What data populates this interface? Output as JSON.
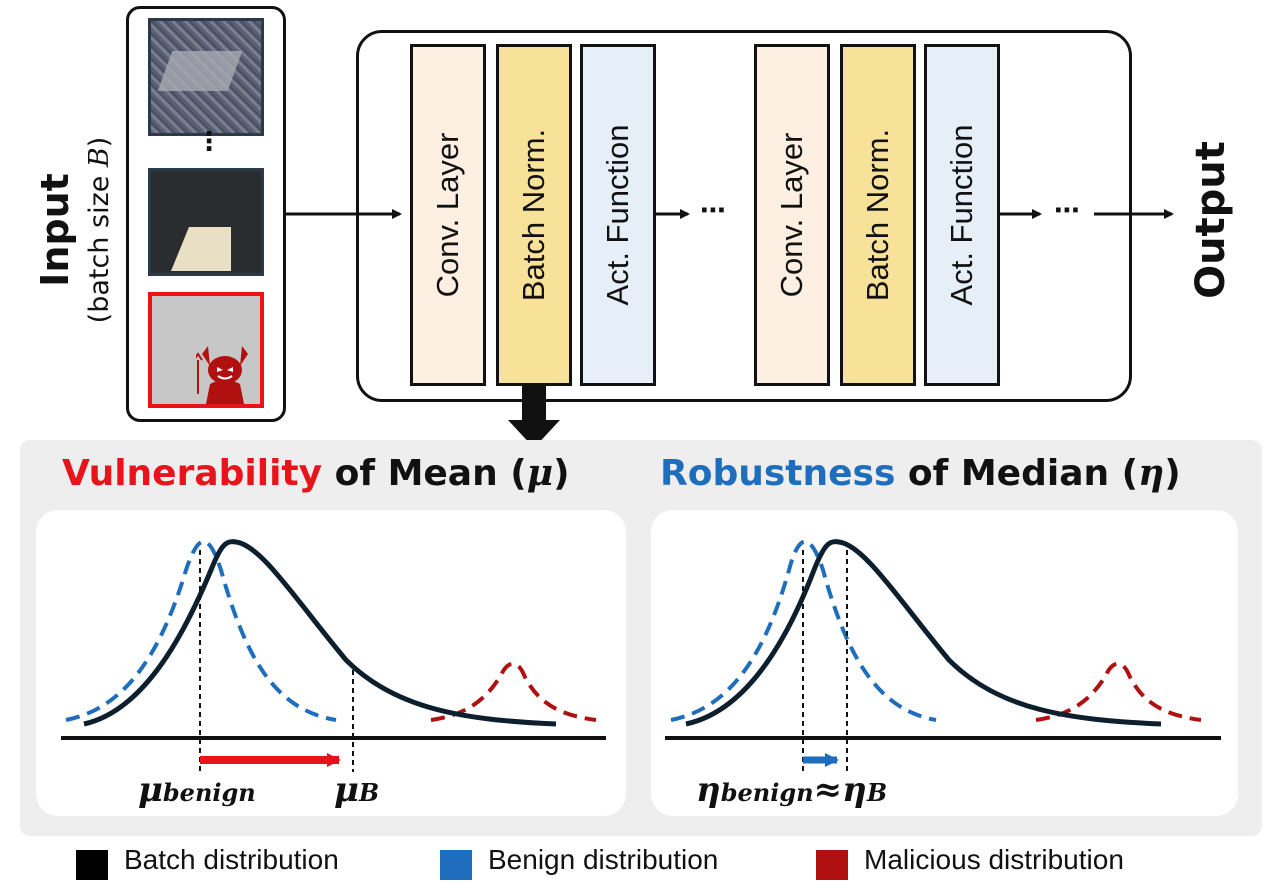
{
  "input": {
    "title": "Input",
    "subtitle_prefix": "(batch size ",
    "subtitle_var": "B",
    "subtitle_suffix": ")",
    "ellipsis": "⋮"
  },
  "network": {
    "layers": [
      {
        "label": "Conv. Layer",
        "kind": "conv"
      },
      {
        "label": "Batch Norm.",
        "kind": "bn"
      },
      {
        "label": "Act. Function",
        "kind": "act"
      },
      {
        "label": "Conv. Layer",
        "kind": "conv"
      },
      {
        "label": "Batch Norm.",
        "kind": "bn"
      },
      {
        "label": "Act. Function",
        "kind": "act"
      }
    ],
    "ellipsis_mid": "⋯",
    "ellipsis_end": "⋯",
    "output_label": "Output"
  },
  "panels": {
    "left": {
      "title_highlight": "Vulnerability",
      "title_rest": " of Mean (",
      "title_symbol": "μ",
      "title_close": ")",
      "label_benign": "μ",
      "label_benign_sub": "benign",
      "label_batch": "μ",
      "label_batch_sub": "B"
    },
    "right": {
      "title_highlight": "Robustness",
      "title_rest": " of Median (",
      "title_symbol": "η",
      "title_close": ")",
      "label_benign": "η",
      "label_benign_sub": "benign",
      "approx": "≈",
      "label_batch": "η",
      "label_batch_sub": "B"
    }
  },
  "legend": [
    {
      "label": "Batch distribution",
      "color": "#000000"
    },
    {
      "label": "Benign distribution",
      "color": "#1f6ebd"
    },
    {
      "label": "Malicious distribution",
      "color": "#b01010"
    }
  ],
  "colors": {
    "batch": "#0d1f2d",
    "benign": "#1f6ebd",
    "malicious": "#b01010",
    "highlight_red": "#e8141c",
    "highlight_blue": "#1f6ebd"
  }
}
